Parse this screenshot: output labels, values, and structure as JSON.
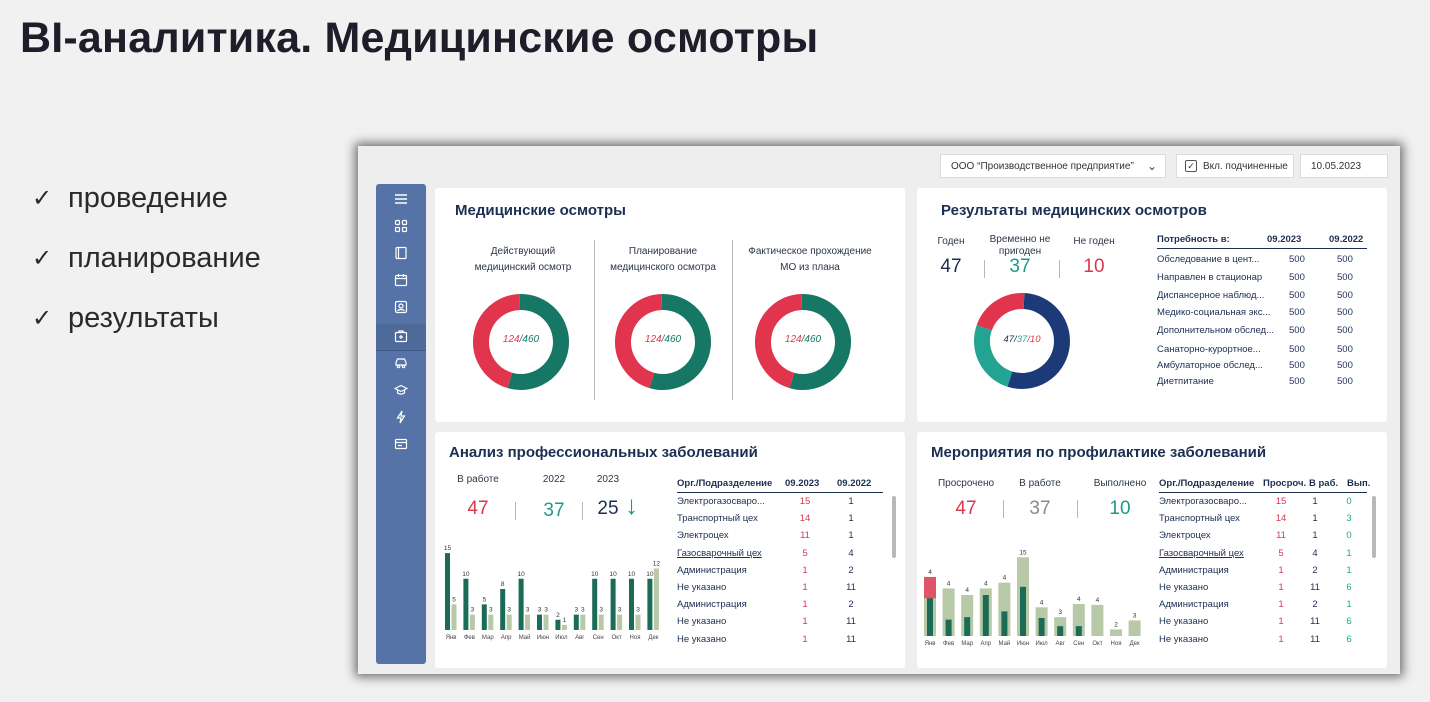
{
  "slide": {
    "title": "BI-аналитика. Медицинские осмотры",
    "bullets": [
      "проведение",
      "планирование",
      "результаты"
    ],
    "check": "✓"
  },
  "topbar": {
    "org": "ООО “Производственное предприятие”",
    "subordinates_label": "Вкл. подчиненные",
    "subordinates_checked": true,
    "date": "10.05.2023"
  },
  "sidebar": {
    "icons": [
      "menu-icon",
      "grid-icon",
      "book-icon",
      "calendar-icon",
      "badge-icon",
      "medkit-icon",
      "car-icon",
      "graduation-cap-icon",
      "lightning-icon",
      "card-icon"
    ],
    "active_index": 5
  },
  "colors": {
    "red": "#e0354c",
    "teal_dark": "#177765",
    "teal": "#23a493",
    "navy": "#1c3a78",
    "bar_dark": "#1b6b57",
    "bar_light": "#b8c9a8",
    "bar_red": "#e05468"
  },
  "med_exams": {
    "title": "Медицинские осмотры",
    "donuts": [
      {
        "label_l1": "Действующий",
        "label_l2": "медицинский осмотр",
        "part": 124,
        "total": 460,
        "part_text": "124",
        "total_text": "/460"
      },
      {
        "label_l1": "Планирование",
        "label_l2": "медицинского осмотра",
        "part": 124,
        "total": 460,
        "part_text": "124",
        "total_text": "/460"
      },
      {
        "label_l1": "Фактическое прохождение",
        "label_l2": "МО из плана",
        "part": 124,
        "total": 460,
        "part_text": "124",
        "total_text": "/460"
      }
    ]
  },
  "results": {
    "title": "Результаты медицинских осмотров",
    "fit_label": "Годен",
    "fit_value": "47",
    "temp_label_1": "Временно не",
    "temp_label_2": "пригоден",
    "temp_value": "37",
    "unfit_label": "Не годен",
    "unfit_value": "10",
    "donut_text_a": "47/",
    "donut_text_b": "37",
    "donut_text_c": "/10",
    "donut_values": [
      47,
      37,
      10
    ],
    "needs_header": "Потребность в:",
    "col_a": "09.2023",
    "col_b": "09.2022",
    "needs": [
      {
        "name": "Обследование в цент...",
        "a": "500",
        "b": "500"
      },
      {
        "name": "Направлен в стационар",
        "a": "500",
        "b": "500"
      },
      {
        "name": "Диспансерное наблюд...",
        "a": "500",
        "b": "500"
      },
      {
        "name": "Медико-социальная экс...",
        "a": "500",
        "b": "500"
      },
      {
        "name": "Дополнительном обслед...",
        "a": "500",
        "b": "500"
      },
      {
        "name": "Санаторно-курортное...",
        "a": "500",
        "b": "500"
      },
      {
        "name": "Амбулаторное обслед...",
        "a": "500",
        "b": "500"
      },
      {
        "name": "Диетпитание",
        "a": "500",
        "b": "500"
      }
    ]
  },
  "diseases": {
    "title": "Анализ профессиональных заболеваний",
    "in_work_label": "В работе",
    "in_work_value": "47",
    "y2022_label": "2022",
    "y2022_value": "37",
    "y2023_label": "2023",
    "y2023_value": "25",
    "trend_arrow": "↓",
    "table_head": [
      "Орг./Подразделение",
      "09.2023",
      "09.2022"
    ],
    "rows": [
      {
        "name": "Электрогазосваро...",
        "a": "15",
        "b": "1",
        "link": false
      },
      {
        "name": "Транспортный цех",
        "a": "14",
        "b": "1",
        "link": false
      },
      {
        "name": "Электроцех",
        "a": "11",
        "b": "1",
        "link": false
      },
      {
        "name": "Газосварочный цех",
        "a": "5",
        "b": "4",
        "link": true
      },
      {
        "name": "Администрация",
        "a": "1",
        "b": "2",
        "link": false
      },
      {
        "name": "Не указано",
        "a": "1",
        "b": "11",
        "link": false
      },
      {
        "name": "Администрация",
        "a": "1",
        "b": "2",
        "link": false
      },
      {
        "name": "Не указано",
        "a": "1",
        "b": "11",
        "link": false
      },
      {
        "name": "Не указано",
        "a": "1",
        "b": "11",
        "link": false
      }
    ]
  },
  "prevention": {
    "title": "Мероприятия  по профилактике заболеваний",
    "overdue_label": "Просрочено",
    "overdue_value": "47",
    "in_work_label": "В работе",
    "in_work_value": "37",
    "done_label": "Выполнено",
    "done_value": "10",
    "table_head": [
      "Орг./Подразделение",
      "Просроч.",
      "В раб.",
      "Вып."
    ],
    "rows": [
      {
        "name": "Электрогазосваро...",
        "a": "15",
        "b": "1",
        "c": "0",
        "link": false
      },
      {
        "name": "Транспортный цех",
        "a": "14",
        "b": "1",
        "c": "3",
        "link": false
      },
      {
        "name": "Электроцех",
        "a": "11",
        "b": "1",
        "c": "0",
        "link": false
      },
      {
        "name": "Газосварочный цех",
        "a": "5",
        "b": "4",
        "c": "1",
        "link": true
      },
      {
        "name": "Администрация",
        "a": "1",
        "b": "2",
        "c": "1",
        "link": false
      },
      {
        "name": "Не указано",
        "a": "1",
        "b": "11",
        "c": "6",
        "link": false
      },
      {
        "name": "Администрация",
        "a": "1",
        "b": "2",
        "c": "1",
        "link": false
      },
      {
        "name": "Не указано",
        "a": "1",
        "b": "11",
        "c": "6",
        "link": false
      },
      {
        "name": "Не указано",
        "a": "1",
        "b": "11",
        "c": "6",
        "link": false
      }
    ]
  },
  "chart_data": [
    {
      "type": "bar",
      "title": "Анализ профессиональных заболеваний",
      "categories": [
        "Янв",
        "Фев",
        "Мар",
        "Апр",
        "Май",
        "Июн",
        "Июл",
        "Авг",
        "Сен",
        "Окт",
        "Ноя",
        "Дек"
      ],
      "series": [
        {
          "values": [
            15,
            10,
            5,
            8,
            10,
            3,
            2,
            3,
            10,
            10,
            10,
            10
          ]
        },
        {
          "values": [
            5,
            3,
            3,
            3,
            3,
            3,
            1,
            3,
            3,
            3,
            3,
            12
          ]
        }
      ],
      "ylim": [
        0,
        16
      ]
    },
    {
      "type": "bar",
      "title": "Мероприятия  по профилактике заболеваний",
      "categories": [
        "Янв",
        "Фев",
        "Мар",
        "Апр",
        "Май",
        "Июн",
        "Июл",
        "Авг",
        "Сен",
        "Окт",
        "Ноя",
        "Дек"
      ],
      "stacked": true,
      "labels": [
        4,
        4,
        4,
        4,
        4,
        15,
        4,
        3,
        4,
        4,
        2,
        3
      ],
      "totals": [
        7.2,
        5.8,
        5,
        5.8,
        6.5,
        9.6,
        3.5,
        2.3,
        3.9,
        3.8,
        0.8,
        1.9
      ],
      "dark": [
        4.8,
        2,
        2.3,
        5,
        3,
        6,
        2.2,
        1.2,
        1.2,
        0,
        0,
        0
      ],
      "highlight": [
        2.6,
        0,
        0,
        0,
        0,
        0,
        0,
        0,
        0,
        0,
        0,
        0
      ],
      "ylim": [
        0,
        10
      ]
    }
  ]
}
